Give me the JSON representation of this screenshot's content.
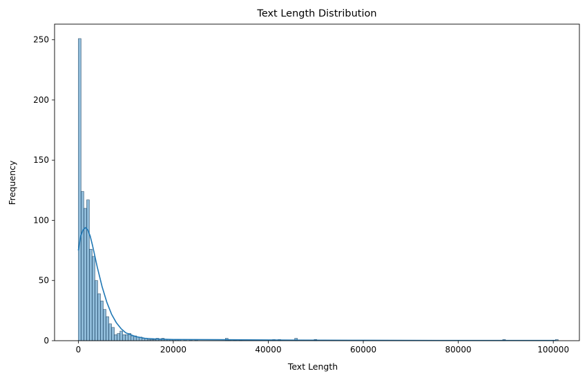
{
  "chart_data": {
    "type": "bar",
    "subtype": "histogram-with-kde",
    "title": "Text Length Distribution",
    "xlabel": "Text Length",
    "ylabel": "Frequency",
    "xlim": [
      -5000,
      105500
    ],
    "ylim": [
      0,
      263
    ],
    "x_ticks": [
      0,
      20000,
      40000,
      60000,
      80000,
      100000
    ],
    "y_ticks": [
      0,
      50,
      100,
      150,
      200,
      250
    ],
    "grid": false,
    "legend": "none",
    "bar_color": "#1f77b4",
    "bar_alpha": 0.5,
    "kde_color": "#1f77b4",
    "bin_start": 0,
    "bin_width": 584,
    "bins": [
      [
        0,
        251
      ],
      [
        584,
        124
      ],
      [
        1168,
        110
      ],
      [
        1752,
        117
      ],
      [
        2336,
        76
      ],
      [
        2920,
        70
      ],
      [
        3504,
        50
      ],
      [
        4088,
        39
      ],
      [
        4672,
        33
      ],
      [
        5256,
        26
      ],
      [
        5840,
        20
      ],
      [
        6424,
        14
      ],
      [
        7008,
        11
      ],
      [
        7592,
        5
      ],
      [
        8176,
        6
      ],
      [
        8760,
        8
      ],
      [
        9344,
        5
      ],
      [
        9928,
        5
      ],
      [
        10512,
        6
      ],
      [
        11096,
        4
      ],
      [
        11680,
        4
      ],
      [
        12264,
        3
      ],
      [
        12848,
        3
      ],
      [
        13432,
        2
      ],
      [
        14016,
        2
      ],
      [
        14600,
        1
      ],
      [
        15184,
        1
      ],
      [
        15768,
        1
      ],
      [
        16352,
        2
      ],
      [
        16936,
        1
      ],
      [
        17520,
        2
      ],
      [
        18104,
        1
      ],
      [
        18688,
        1
      ],
      [
        19272,
        1
      ],
      [
        19856,
        1
      ],
      [
        20440,
        1
      ],
      [
        21024,
        1
      ],
      [
        22192,
        1
      ],
      [
        23360,
        1
      ],
      [
        24528,
        1
      ],
      [
        30952,
        2
      ],
      [
        31536,
        1
      ],
      [
        32704,
        1
      ],
      [
        33872,
        1
      ],
      [
        40880,
        1
      ],
      [
        42048,
        1
      ],
      [
        45552,
        2
      ],
      [
        49640,
        1
      ],
      [
        89352,
        1
      ],
      [
        100448,
        1
      ]
    ],
    "kde": {
      "x": [
        0,
        500,
        1000,
        1500,
        2000,
        2500,
        3000,
        3500,
        4000,
        5000,
        6000,
        7000,
        8000,
        9000,
        10000,
        12000,
        14000,
        16000,
        20000,
        30000,
        45000,
        60000,
        80000,
        100500
      ],
      "y": [
        75,
        87,
        92,
        94,
        92,
        87,
        79,
        70,
        61,
        45,
        32,
        22,
        15,
        10,
        6.5,
        3.5,
        2,
        1.5,
        1,
        0.8,
        0.5,
        0.3,
        0.2,
        0.2
      ]
    }
  }
}
